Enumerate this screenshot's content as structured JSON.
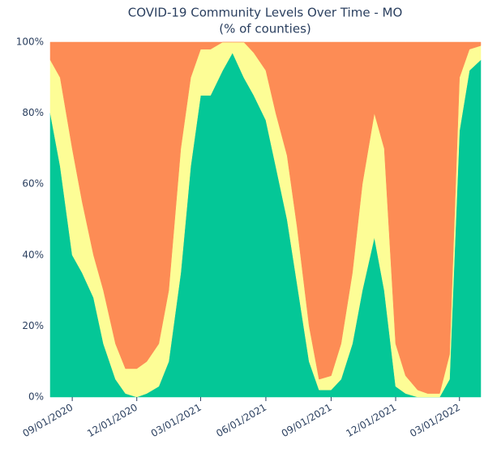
{
  "chart_data": {
    "type": "stacked-area",
    "title": "COVID-19 Community Levels Over Time - MO",
    "subtitle": "(% of counties)",
    "x": [
      "08/01/2020",
      "08/15/2020",
      "09/01/2020",
      "09/15/2020",
      "10/01/2020",
      "10/15/2020",
      "11/01/2020",
      "11/15/2020",
      "12/01/2020",
      "12/15/2020",
      "01/01/2021",
      "01/15/2021",
      "02/01/2021",
      "02/15/2021",
      "03/01/2021",
      "03/15/2021",
      "04/01/2021",
      "04/15/2021",
      "05/01/2021",
      "05/15/2021",
      "06/01/2021",
      "06/15/2021",
      "07/01/2021",
      "07/15/2021",
      "08/01/2021",
      "08/15/2021",
      "09/01/2021",
      "09/15/2021",
      "10/01/2021",
      "10/15/2021",
      "11/01/2021",
      "11/15/2021",
      "12/01/2021",
      "12/15/2021",
      "01/01/2022",
      "01/15/2022",
      "02/01/2022",
      "02/15/2022",
      "03/01/2022",
      "03/15/2022",
      "03/31/2022"
    ],
    "series": [
      {
        "color": "#04c797",
        "values": [
          80,
          65,
          40,
          35,
          28,
          15,
          5,
          1,
          0,
          1,
          3,
          10,
          35,
          65,
          85,
          85,
          92,
          97,
          90,
          85,
          78,
          65,
          50,
          32,
          10,
          2,
          2,
          5,
          15,
          30,
          45,
          30,
          3,
          1,
          0,
          0,
          0,
          5,
          75,
          92,
          95
        ]
      },
      {
        "color": "#fdfd96",
        "values": [
          15,
          25,
          30,
          20,
          12,
          15,
          10,
          7,
          8,
          9,
          12,
          20,
          35,
          25,
          13,
          13,
          8,
          3,
          10,
          12,
          14,
          15,
          18,
          16,
          10,
          3,
          4,
          10,
          20,
          30,
          35,
          40,
          12,
          5,
          2,
          1,
          1,
          7,
          15,
          6,
          4
        ]
      },
      {
        "color": "#fd8c55",
        "values": [
          5,
          10,
          30,
          45,
          60,
          70,
          85,
          92,
          92,
          90,
          85,
          70,
          30,
          10,
          2,
          2,
          0,
          0,
          0,
          3,
          8,
          20,
          32,
          52,
          80,
          95,
          94,
          85,
          65,
          40,
          20,
          30,
          85,
          94,
          98,
          99,
          99,
          88,
          10,
          2,
          1
        ]
      }
    ],
    "xlim": [
      "08/01/2020",
      "03/31/2022"
    ],
    "xticks": [
      "09/01/2020",
      "12/01/2020",
      "03/01/2021",
      "06/01/2021",
      "09/01/2021",
      "12/01/2021",
      "03/01/2022"
    ],
    "ylim": [
      0,
      100
    ],
    "yticks": [
      {
        "value": 0,
        "label": "0%"
      },
      {
        "value": 20,
        "label": "20%"
      },
      {
        "value": 40,
        "label": "40%"
      },
      {
        "value": 60,
        "label": "60%"
      },
      {
        "value": 80,
        "label": "80%"
      },
      {
        "value": 100,
        "label": "100%"
      }
    ]
  }
}
